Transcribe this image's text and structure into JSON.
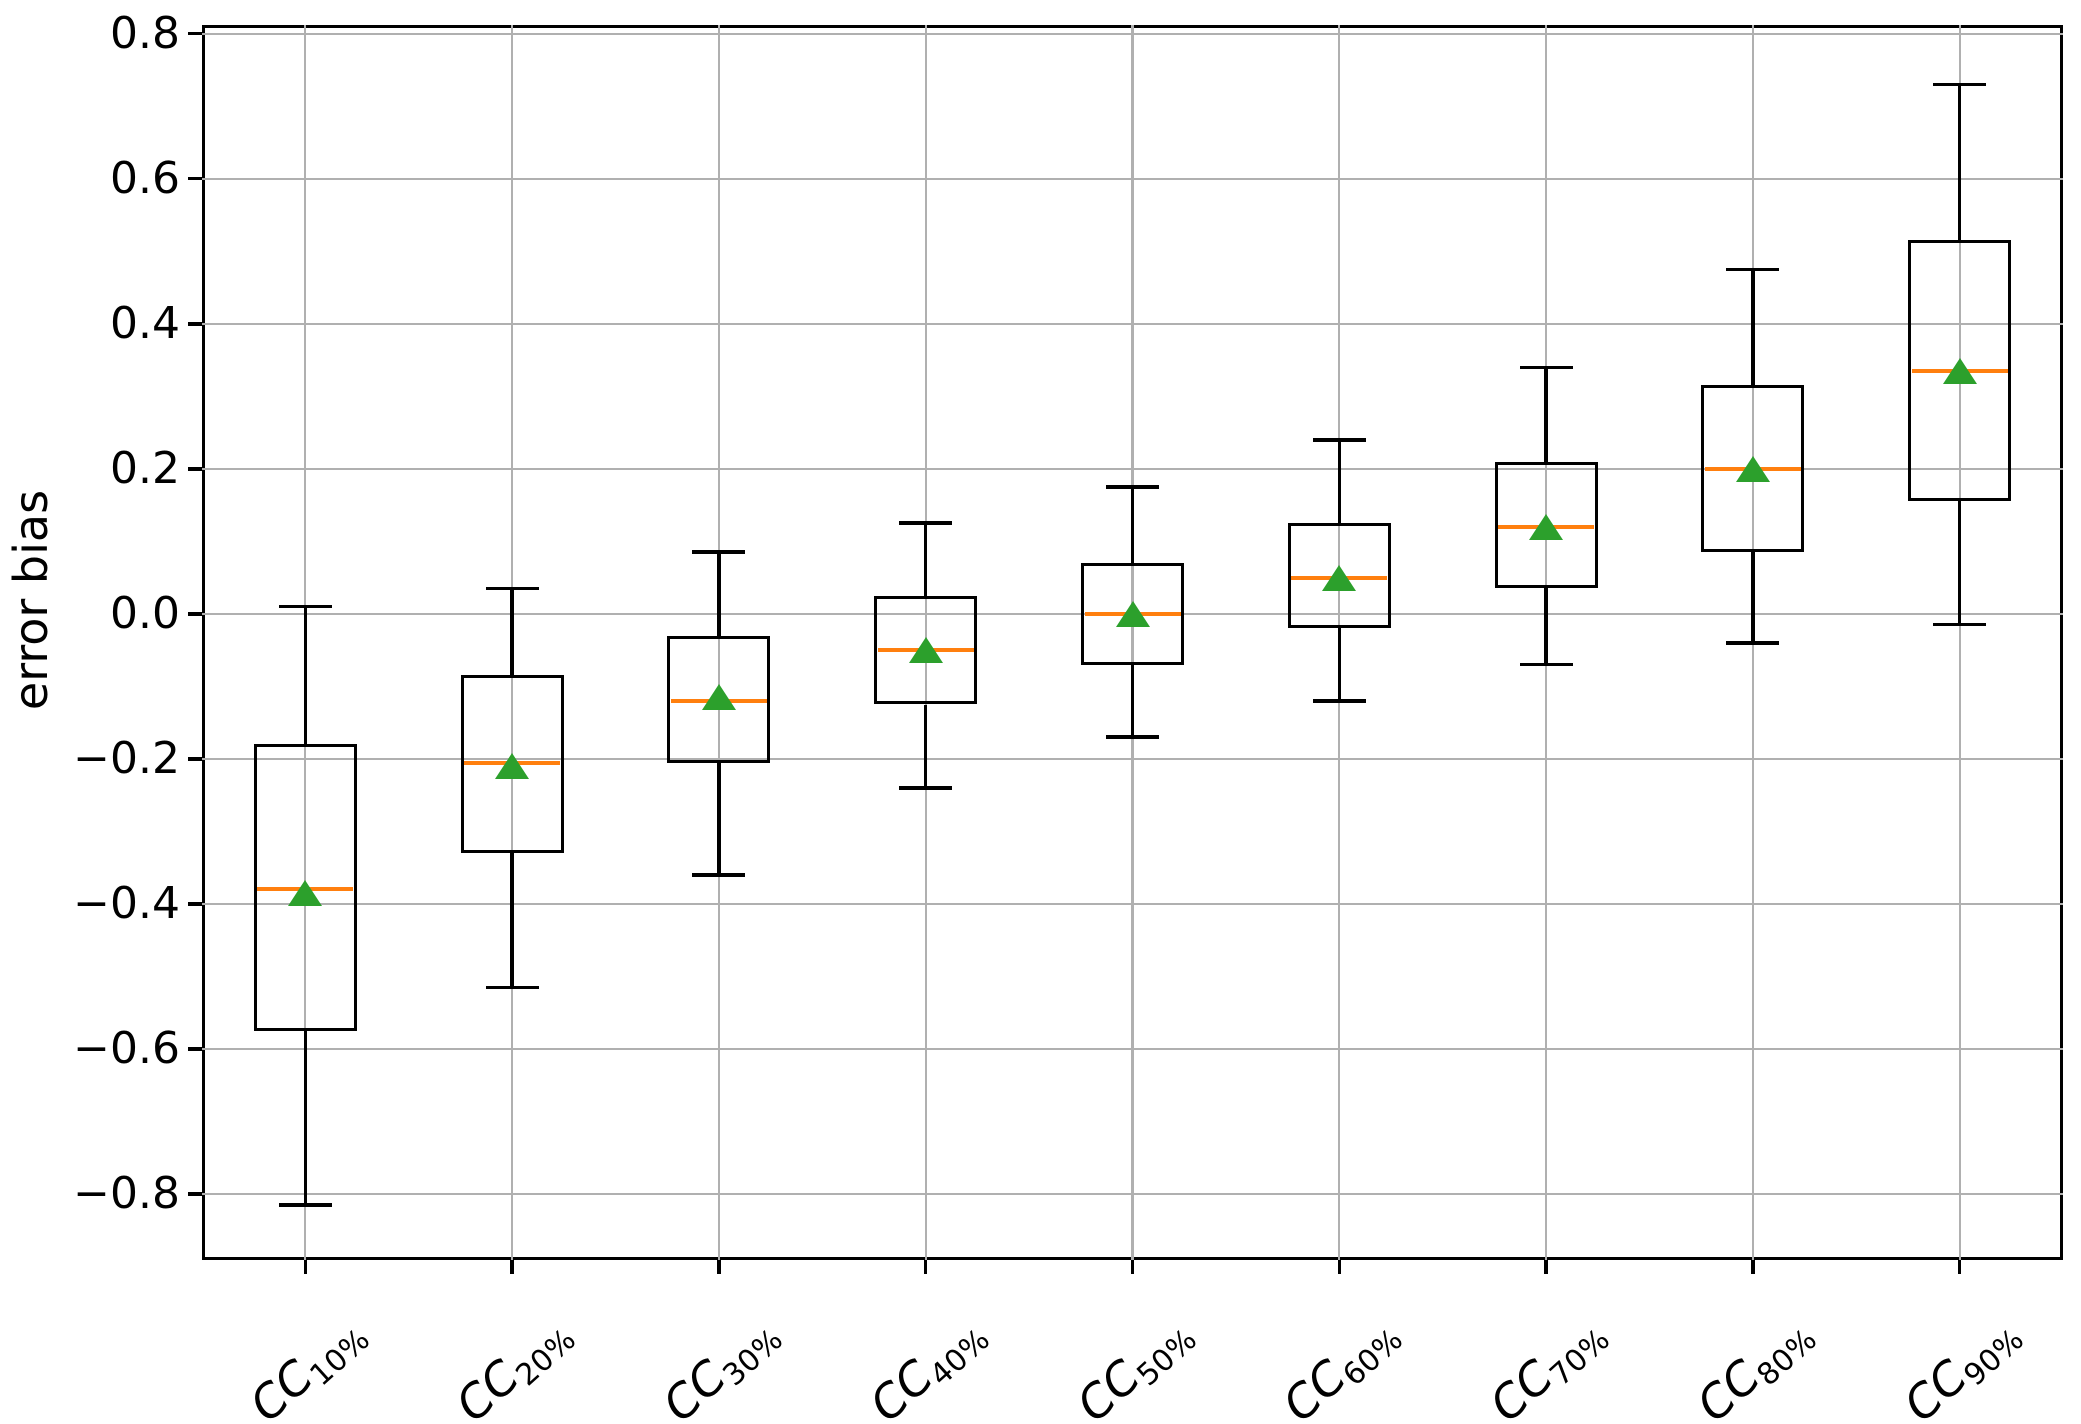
{
  "chart_data": {
    "type": "box",
    "title": "",
    "xlabel": "",
    "ylabel": "error bias",
    "grid": true,
    "legend": null,
    "ylim": [
      -0.891,
      0.812
    ],
    "yticks": [
      {
        "v": 0.8,
        "label": "0.8"
      },
      {
        "v": 0.6,
        "label": "0.6"
      },
      {
        "v": 0.4,
        "label": "0.4"
      },
      {
        "v": 0.2,
        "label": "0.2"
      },
      {
        "v": 0.0,
        "label": "0.0"
      },
      {
        "v": -0.2,
        "label": "−0.2"
      },
      {
        "v": -0.4,
        "label": "−0.4"
      },
      {
        "v": -0.6,
        "label": "−0.6"
      },
      {
        "v": -0.8,
        "label": "−0.8"
      }
    ],
    "categories": [
      {
        "base": "CC",
        "sub": "10%"
      },
      {
        "base": "CC",
        "sub": "20%"
      },
      {
        "base": "CC",
        "sub": "30%"
      },
      {
        "base": "CC",
        "sub": "40%"
      },
      {
        "base": "CC",
        "sub": "50%"
      },
      {
        "base": "CC",
        "sub": "60%"
      },
      {
        "base": "CC",
        "sub": "70%"
      },
      {
        "base": "CC",
        "sub": "80%"
      },
      {
        "base": "CC",
        "sub": "90%"
      }
    ],
    "boxes": [
      {
        "label": "CC 10%",
        "whislo": -0.815,
        "q1": -0.575,
        "med": -0.38,
        "mean": -0.385,
        "q3": -0.18,
        "whishi": 0.01
      },
      {
        "label": "CC 20%",
        "whislo": -0.515,
        "q1": -0.33,
        "med": -0.205,
        "mean": -0.21,
        "q3": -0.085,
        "whishi": 0.035
      },
      {
        "label": "CC 30%",
        "whislo": -0.36,
        "q1": -0.205,
        "med": -0.12,
        "mean": -0.115,
        "q3": -0.03,
        "whishi": 0.085
      },
      {
        "label": "CC 40%",
        "whislo": -0.24,
        "q1": -0.125,
        "med": -0.05,
        "mean": -0.05,
        "q3": 0.025,
        "whishi": 0.125
      },
      {
        "label": "CC 50%",
        "whislo": -0.17,
        "q1": -0.07,
        "med": 0.0,
        "mean": 0.0,
        "q3": 0.07,
        "whishi": 0.175
      },
      {
        "label": "CC 60%",
        "whislo": -0.12,
        "q1": -0.02,
        "med": 0.05,
        "mean": 0.05,
        "q3": 0.125,
        "whishi": 0.24
      },
      {
        "label": "CC 70%",
        "whislo": -0.07,
        "q1": 0.035,
        "med": 0.12,
        "mean": 0.12,
        "q3": 0.21,
        "whishi": 0.34
      },
      {
        "label": "CC 80%",
        "whislo": -0.04,
        "q1": 0.085,
        "med": 0.2,
        "mean": 0.2,
        "q3": 0.315,
        "whishi": 0.475
      },
      {
        "label": "CC 90%",
        "whislo": -0.015,
        "q1": 0.155,
        "med": 0.335,
        "mean": 0.335,
        "q3": 0.515,
        "whishi": 0.73
      }
    ],
    "colors": {
      "box_line": "#000000",
      "median": "#ff7f0e",
      "mean_marker": "#2ca02c",
      "grid": "#b0b0b0",
      "background": "#ffffff"
    }
  }
}
